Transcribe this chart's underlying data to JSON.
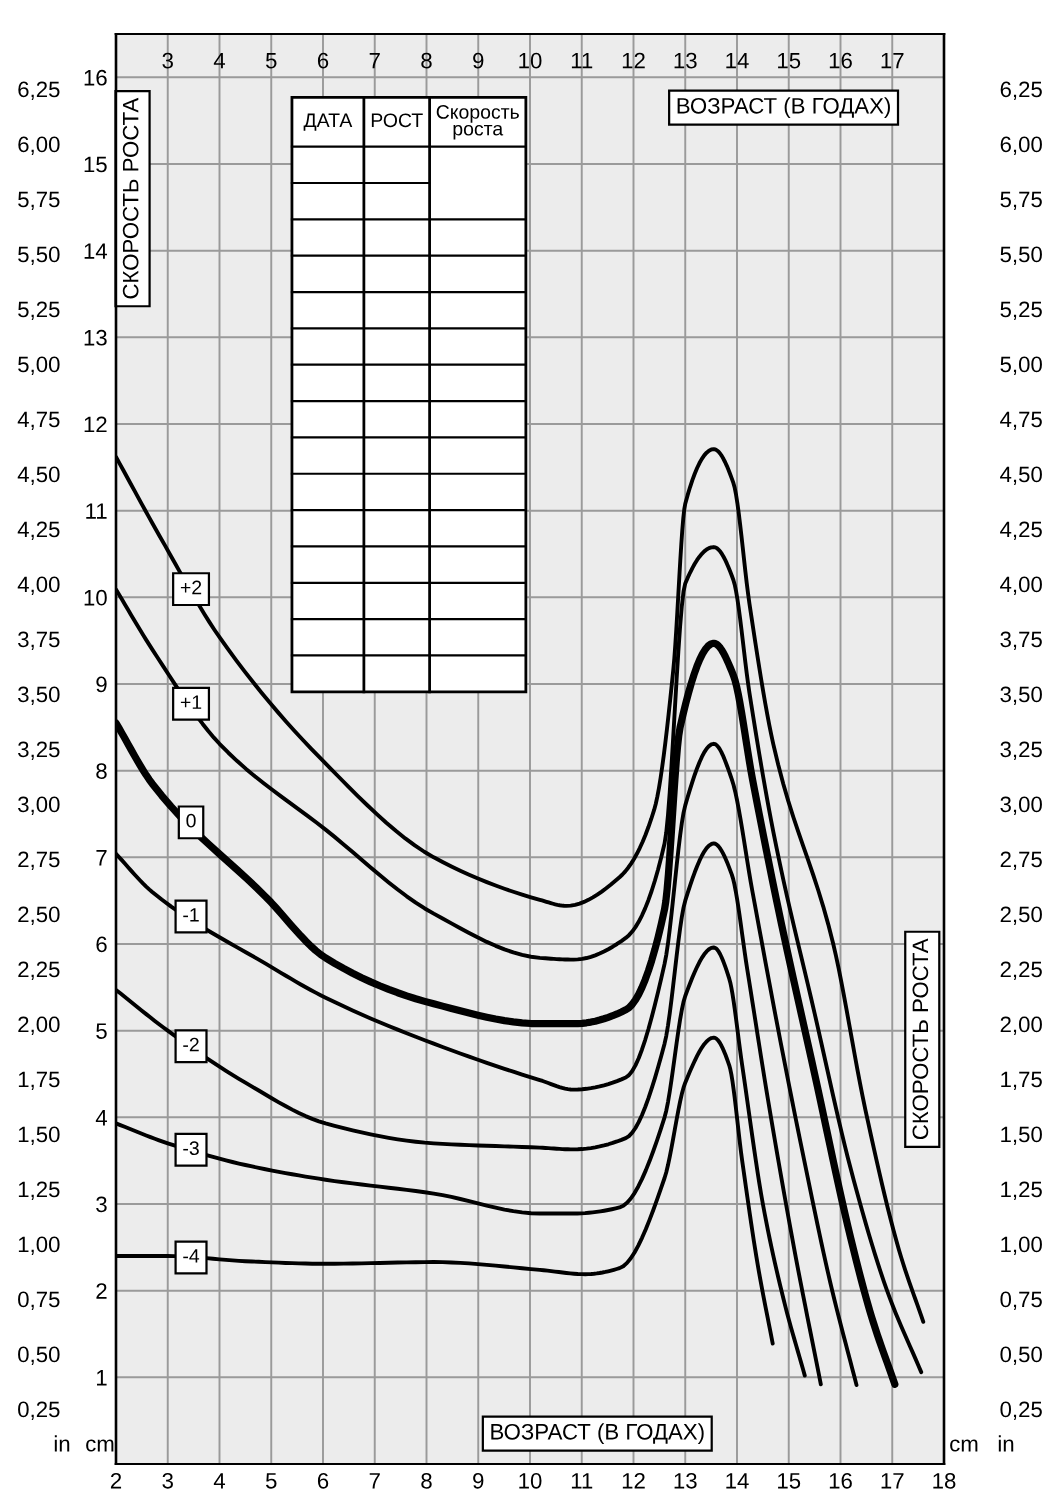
{
  "chart_data": {
    "type": "line",
    "xlim": [
      2,
      18
    ],
    "xticks": [
      2,
      3,
      4,
      5,
      6,
      7,
      8,
      9,
      10,
      11,
      12,
      13,
      14,
      15,
      16,
      17,
      18
    ],
    "x2lim": [
      2,
      18
    ],
    "x2ticks": [
      3,
      4,
      5,
      6,
      7,
      8,
      9,
      10,
      11,
      12,
      13,
      14,
      15,
      16,
      17
    ],
    "ylim": [
      0,
      16.5
    ],
    "yticks": [
      1,
      2,
      3,
      4,
      5,
      6,
      7,
      8,
      9,
      10,
      11,
      12,
      13,
      14,
      15,
      16
    ],
    "y2lim": [
      0,
      6.5
    ],
    "y2ticks": [
      {
        "value": 0.25,
        "label": "0,25"
      },
      {
        "value": 0.5,
        "label": "0,50"
      },
      {
        "value": 0.75,
        "label": "0,75"
      },
      {
        "value": 1.0,
        "label": "1,00"
      },
      {
        "value": 1.25,
        "label": "1,25"
      },
      {
        "value": 1.5,
        "label": "1,50"
      },
      {
        "value": 1.75,
        "label": "1,75"
      },
      {
        "value": 2.0,
        "label": "2,00"
      },
      {
        "value": 2.25,
        "label": "2,25"
      },
      {
        "value": 2.5,
        "label": "2,50"
      },
      {
        "value": 2.75,
        "label": "2,75"
      },
      {
        "value": 3.0,
        "label": "3,00"
      },
      {
        "value": 3.25,
        "label": "3,25"
      },
      {
        "value": 3.5,
        "label": "3,50"
      },
      {
        "value": 3.75,
        "label": "3,75"
      },
      {
        "value": 4.0,
        "label": "4,00"
      },
      {
        "value": 4.25,
        "label": "4,25"
      },
      {
        "value": 4.5,
        "label": "4,50"
      },
      {
        "value": 4.75,
        "label": "4,75"
      },
      {
        "value": 5.0,
        "label": "5,00"
      },
      {
        "value": 5.25,
        "label": "5,25"
      },
      {
        "value": 5.5,
        "label": "5,50"
      },
      {
        "value": 5.75,
        "label": "5,75"
      },
      {
        "value": 6.0,
        "label": "6,00"
      },
      {
        "value": 6.25,
        "label": "6,25"
      }
    ],
    "grid": true,
    "marker": "none",
    "line_style": "solid",
    "annotations": [
      "СКОРОСТЬ РОСТА",
      "ВОЗРАСТ (В ГОДАХ)",
      "СКОРОСТЬ РОСТА",
      "ВОЗРАСТ (В ГОДАХ)",
      "ДАТА",
      "РОСТ",
      "Скорость роста",
      "in",
      "cm",
      "cm",
      "in"
    ],
    "series": [
      {
        "name": "+2",
        "color": "#000000",
        "x": [
          2,
          2.85,
          4.0,
          5.94,
          8.14,
          10.19,
          10.7,
          11.73,
          12.4,
          12.77,
          13.0,
          13.55,
          13.93,
          14.24,
          14.7,
          15.86,
          16.48,
          17.13,
          17.6
        ],
        "values": [
          11.62,
          10.7,
          9.54,
          8.15,
          7.0,
          6.51,
          6.44,
          6.77,
          7.55,
          9.17,
          11.08,
          11.71,
          11.32,
          9.93,
          8.31,
          6.0,
          4.09,
          2.47,
          1.64
        ]
      },
      {
        "name": "+1",
        "color": "#000000",
        "x": [
          2,
          2.7,
          4.0,
          6.05,
          8.14,
          10.19,
          10.84,
          11.85,
          12.6,
          13.0,
          13.55,
          13.93,
          14.24,
          14.7,
          15.5,
          16.2,
          16.9,
          17.56
        ],
        "values": [
          10.09,
          9.4,
          8.31,
          7.32,
          6.35,
          5.84,
          5.82,
          6.07,
          7.16,
          10.16,
          10.58,
          10.2,
          8.9,
          7.3,
          5.2,
          3.4,
          2.0,
          1.06
        ]
      },
      {
        "name": "0",
        "color": "#000000",
        "x": [
          2,
          2.7,
          4.9,
          6.05,
          8.14,
          10.19,
          10.84,
          11.85,
          12.6,
          12.9,
          13.55,
          13.93,
          14.3,
          14.8,
          15.5,
          16.2,
          16.6,
          17.05
        ],
        "values": [
          8.55,
          7.85,
          6.54,
          5.84,
          5.31,
          5.08,
          5.08,
          5.24,
          6.4,
          8.5,
          9.47,
          9.1,
          7.9,
          6.4,
          4.5,
          2.6,
          1.7,
          0.92
        ]
      },
      {
        "name": "-1",
        "color": "#000000",
        "x": [
          2,
          2.7,
          4.9,
          6.05,
          8.14,
          10.19,
          10.84,
          11.85,
          12.6,
          13.0,
          13.55,
          13.9,
          14.3,
          14.8,
          15.3,
          15.8,
          16.31
        ],
        "values": [
          7.04,
          6.6,
          5.77,
          5.38,
          4.85,
          4.43,
          4.32,
          4.46,
          5.77,
          7.6,
          8.31,
          7.9,
          6.6,
          5.0,
          3.5,
          2.1,
          0.91
        ]
      },
      {
        "name": "-2",
        "color": "#000000",
        "x": [
          2,
          3.0,
          4.5,
          6.05,
          8.14,
          10.19,
          10.84,
          11.85,
          12.6,
          13.0,
          13.55,
          13.9,
          14.2,
          14.6,
          15.1,
          15.62
        ],
        "values": [
          5.47,
          5.0,
          4.4,
          3.93,
          3.7,
          3.65,
          3.63,
          3.76,
          4.85,
          6.5,
          7.16,
          6.8,
          5.7,
          4.2,
          2.5,
          0.92
        ]
      },
      {
        "name": "-3",
        "color": "#000000",
        "x": [
          2,
          3.0,
          4.5,
          6.05,
          8.14,
          10.19,
          10.84,
          11.73,
          12.6,
          13.0,
          13.55,
          13.85,
          14.1,
          14.5,
          14.9,
          15.31
        ],
        "values": [
          3.93,
          3.7,
          3.45,
          3.28,
          3.12,
          2.89,
          2.89,
          2.96,
          4.0,
          5.4,
          5.96,
          5.6,
          4.6,
          3.0,
          1.9,
          1.02
        ]
      },
      {
        "name": "-4",
        "color": "#000000",
        "x": [
          2,
          3.0,
          4.5,
          6.05,
          8.14,
          10.19,
          11.07,
          11.73,
          12.6,
          13.0,
          13.55,
          13.85,
          14.1,
          14.4,
          14.69
        ],
        "values": [
          2.4,
          2.4,
          2.34,
          2.31,
          2.33,
          2.24,
          2.19,
          2.26,
          3.3,
          4.4,
          4.92,
          4.6,
          3.5,
          2.3,
          1.39
        ]
      }
    ]
  }
}
